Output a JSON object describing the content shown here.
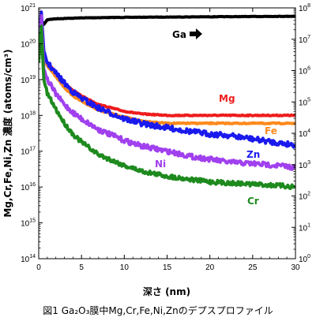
{
  "caption": "図1 Ga₂O₃膜中Mg,Cr,Fe,Ni,Znのデプスプロファイル",
  "chart_data": {
    "type": "line",
    "xlabel": "深さ (nm)",
    "ylabel": "Mg,Cr,Fe,Ni,Zn 濃度 (atoms/cm³)",
    "xlim": [
      0,
      30
    ],
    "ylim_left": [
      100000000000000.0,
      1e+21
    ],
    "ylim_right": [
      1,
      100000000.0
    ],
    "yscale": "log",
    "x_ticks": [
      "0",
      "5",
      "10",
      "15",
      "20",
      "25",
      "30"
    ],
    "y_ticks_left": [
      {
        "base": "10",
        "exp": "14"
      },
      {
        "base": "10",
        "exp": "15"
      },
      {
        "base": "10",
        "exp": "16"
      },
      {
        "base": "10",
        "exp": "17"
      },
      {
        "base": "10",
        "exp": "18"
      },
      {
        "base": "10",
        "exp": "19"
      },
      {
        "base": "10",
        "exp": "20"
      },
      {
        "base": "10",
        "exp": "21"
      }
    ],
    "y_ticks_right": [
      {
        "base": "10",
        "exp": "0"
      },
      {
        "base": "10",
        "exp": "1"
      },
      {
        "base": "10",
        "exp": "2"
      },
      {
        "base": "10",
        "exp": "3"
      },
      {
        "base": "10",
        "exp": "4"
      },
      {
        "base": "10",
        "exp": "5"
      },
      {
        "base": "10",
        "exp": "6"
      },
      {
        "base": "10",
        "exp": "7"
      },
      {
        "base": "10",
        "exp": "8"
      }
    ],
    "series": [
      {
        "name": "Ga",
        "axis": "right",
        "color": "#000000",
        "arrow": true,
        "x": [
          0,
          0.3,
          0.6,
          1,
          2,
          5,
          10,
          15,
          20,
          25,
          30
        ],
        "y": [
          5000000.0,
          40000000.0,
          30000000.0,
          42000000.0,
          45000000.0,
          48000000.0,
          50000000.0,
          51000000.0,
          52000000.0,
          53000000.0,
          54000000.0
        ]
      },
      {
        "name": "Mg",
        "axis": "left",
        "color": "#ee1c1c",
        "x": [
          0,
          0.3,
          0.6,
          1,
          2,
          3,
          4,
          5,
          7,
          10,
          12,
          15,
          20,
          25,
          30
        ],
        "y": [
          1e+20,
          2e+20,
          5e+19,
          3e+19,
          1.5e+19,
          8e+18,
          5e+18,
          3.5e+18,
          2e+18,
          1.3e+18,
          1.1e+18,
          1e+18,
          1e+18,
          1e+18,
          1e+18
        ]
      },
      {
        "name": "Fe",
        "axis": "left",
        "color": "#ff8a1c",
        "x": [
          0,
          0.3,
          0.6,
          1,
          2,
          3,
          4,
          5,
          7,
          10,
          12,
          15,
          20,
          25,
          30
        ],
        "y": [
          1e+20,
          2e+20,
          4e+19,
          2.5e+19,
          1.2e+19,
          6e+18,
          3.5e+18,
          2.5e+18,
          1.4e+18,
          9e+17,
          7e+17,
          6e+17,
          6e+17,
          6e+17,
          6e+17
        ]
      },
      {
        "name": "Zn",
        "axis": "left",
        "color": "#1a1aee",
        "x": [
          0,
          0.3,
          0.6,
          1,
          2,
          3,
          4,
          5,
          7,
          10,
          12,
          15,
          18,
          20,
          22,
          25,
          28,
          30
        ],
        "y": [
          1e+20,
          8e+20,
          6e+19,
          3e+19,
          1.5e+19,
          8e+18,
          4.5e+18,
          3e+18,
          1.6e+18,
          8e+17,
          6e+17,
          4.5e+17,
          3.5e+17,
          3e+17,
          2.8e+17,
          2.2e+17,
          1.7e+17,
          1.5e+17
        ]
      },
      {
        "name": "Ni",
        "axis": "left",
        "color": "#a040ee",
        "x": [
          0,
          0.3,
          0.6,
          1,
          2,
          3,
          4,
          5,
          7,
          10,
          12,
          15,
          18,
          20,
          22,
          25,
          28,
          30
        ],
        "y": [
          5e+19,
          6e+20,
          2e+19,
          1e+19,
          4e+18,
          2e+18,
          1.2e+18,
          8e+17,
          4e+17,
          2e+17,
          1.4e+17,
          1e+17,
          7e+16,
          6e+16,
          5e+16,
          4.5e+16,
          4e+16,
          3.5e+16
        ]
      },
      {
        "name": "Cr",
        "axis": "left",
        "color": "#1e8a1e",
        "x": [
          0,
          0.3,
          0.6,
          1,
          2,
          3,
          4,
          5,
          7,
          10,
          12,
          15,
          18,
          20,
          22,
          25,
          28,
          30
        ],
        "y": [
          3e+19,
          3e+20,
          1e+19,
          4e+18,
          1.5e+18,
          6e+17,
          3e+17,
          1.8e+17,
          8e+16,
          4e+16,
          2.8e+16,
          2e+16,
          1.6e+16,
          1.4e+16,
          1.3e+16,
          1.2e+16,
          1.1e+16,
          1e+16
        ]
      }
    ]
  }
}
